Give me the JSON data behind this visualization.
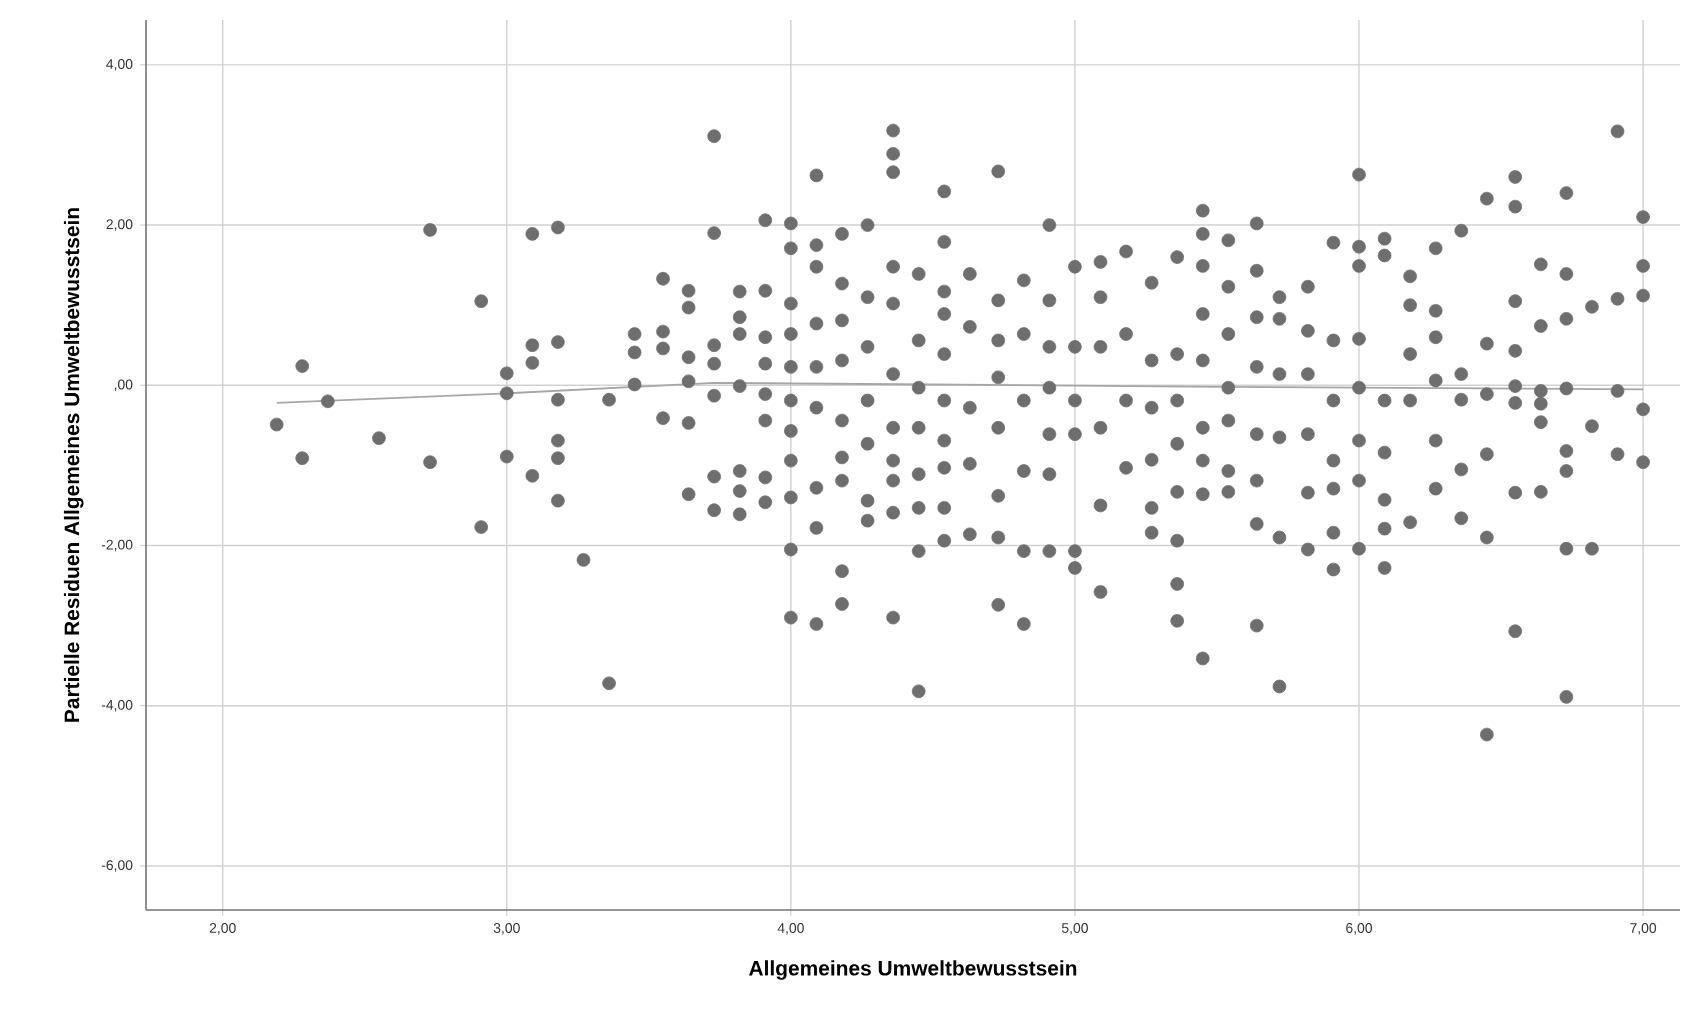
{
  "chart_data": {
    "type": "scatter",
    "xlabel": "Allgemeines Umweltbewusstsein",
    "ylabel": "Partielle Residuen Allgemeines Umweltbewusstsein",
    "xlim": [
      1.73,
      7.13
    ],
    "ylim": [
      -6.55,
      4.56
    ],
    "xticks": [
      {
        "value": 2,
        "label": "2,00"
      },
      {
        "value": 3,
        "label": "3,00"
      },
      {
        "value": 4,
        "label": "4,00"
      },
      {
        "value": 5,
        "label": "5,00"
      },
      {
        "value": 6,
        "label": "6,00"
      },
      {
        "value": 7,
        "label": "7,00"
      }
    ],
    "yticks": [
      {
        "value": -6,
        "label": "-6,00"
      },
      {
        "value": -4,
        "label": "-4,00"
      },
      {
        "value": -2,
        "label": "-2,00"
      },
      {
        "value": 0,
        "label": ",00"
      },
      {
        "value": 2,
        "label": "2,00"
      },
      {
        "value": 4,
        "label": "4,00"
      }
    ],
    "grid": true,
    "marker": "circle",
    "series": [
      {
        "color": "#6e6e6e",
        "x": [
          2.19,
          2.28,
          2.28,
          2.37,
          2.55,
          2.73,
          2.73,
          2.91,
          2.91,
          3.0,
          3.0,
          3.0,
          3.09,
          3.09,
          3.09,
          3.09,
          3.18,
          3.18,
          3.18,
          3.18,
          3.18,
          3.18,
          3.27,
          3.36,
          3.36,
          3.45,
          3.45,
          3.45,
          3.55,
          3.55,
          3.55,
          3.55,
          3.64,
          3.64,
          3.64,
          3.64,
          3.64,
          3.64,
          3.73,
          3.73,
          3.73,
          3.73,
          3.73,
          3.73,
          3.73,
          3.82,
          3.82,
          3.82,
          3.82,
          3.82,
          3.82,
          3.82,
          3.91,
          3.91,
          3.91,
          3.91,
          3.91,
          3.91,
          3.91,
          3.91,
          4.0,
          4.0,
          4.0,
          4.0,
          4.0,
          4.0,
          4.0,
          4.0,
          4.0,
          4.0,
          4.0,
          4.09,
          4.09,
          4.09,
          4.09,
          4.09,
          4.09,
          4.09,
          4.09,
          4.09,
          4.18,
          4.18,
          4.18,
          4.18,
          4.18,
          4.18,
          4.18,
          4.18,
          4.18,
          4.27,
          4.27,
          4.27,
          4.27,
          4.27,
          4.27,
          4.27,
          4.36,
          4.36,
          4.36,
          4.36,
          4.36,
          4.36,
          4.36,
          4.36,
          4.36,
          4.36,
          4.36,
          4.45,
          4.45,
          4.45,
          4.45,
          4.45,
          4.45,
          4.45,
          4.45,
          4.54,
          4.54,
          4.54,
          4.54,
          4.54,
          4.54,
          4.54,
          4.54,
          4.54,
          4.54,
          4.63,
          4.63,
          4.63,
          4.63,
          4.63,
          4.73,
          4.73,
          4.73,
          4.73,
          4.73,
          4.73,
          4.73,
          4.73,
          4.82,
          4.82,
          4.82,
          4.82,
          4.82,
          4.82,
          4.91,
          4.91,
          4.91,
          4.91,
          4.91,
          4.91,
          4.91,
          5.0,
          5.0,
          5.0,
          5.0,
          5.0,
          5.0,
          5.09,
          5.09,
          5.09,
          5.09,
          5.09,
          5.09,
          5.18,
          5.18,
          5.18,
          5.18,
          5.27,
          5.27,
          5.27,
          5.27,
          5.27,
          5.27,
          5.36,
          5.36,
          5.36,
          5.36,
          5.36,
          5.36,
          5.36,
          5.36,
          5.45,
          5.45,
          5.45,
          5.45,
          5.45,
          5.45,
          5.45,
          5.45,
          5.45,
          5.54,
          5.54,
          5.54,
          5.54,
          5.54,
          5.54,
          5.54,
          5.64,
          5.64,
          5.64,
          5.64,
          5.64,
          5.64,
          5.64,
          5.64,
          5.72,
          5.72,
          5.72,
          5.72,
          5.72,
          5.72,
          5.82,
          5.82,
          5.82,
          5.82,
          5.82,
          5.82,
          5.91,
          5.91,
          5.91,
          5.91,
          5.91,
          5.91,
          5.91,
          6.0,
          6.0,
          6.0,
          6.0,
          6.0,
          6.0,
          6.0,
          6.0,
          6.09,
          6.09,
          6.09,
          6.09,
          6.09,
          6.09,
          6.09,
          6.18,
          6.18,
          6.18,
          6.18,
          6.18,
          6.27,
          6.27,
          6.27,
          6.27,
          6.27,
          6.27,
          6.36,
          6.36,
          6.36,
          6.36,
          6.36,
          6.45,
          6.45,
          6.45,
          6.45,
          6.45,
          6.45,
          6.55,
          6.55,
          6.55,
          6.55,
          6.55,
          6.55,
          6.55,
          6.55,
          6.64,
          6.64,
          6.64,
          6.64,
          6.64,
          6.64,
          6.73,
          6.73,
          6.73,
          6.73,
          6.73,
          6.73,
          6.73,
          6.73,
          6.82,
          6.82,
          6.82,
          6.91,
          6.91,
          6.91,
          6.91,
          7.0,
          7.0,
          7.0,
          7.0,
          7.0
        ],
        "values": [
          -0.49,
          0.24,
          -0.91,
          -0.2,
          -0.66,
          1.94,
          -0.96,
          1.05,
          -1.77,
          0.15,
          -0.1,
          -0.89,
          1.89,
          0.5,
          0.28,
          -1.13,
          1.97,
          0.54,
          -0.18,
          -0.69,
          -0.91,
          -1.44,
          -2.18,
          -0.18,
          -3.72,
          0.64,
          0.41,
          0.01,
          1.33,
          0.67,
          0.46,
          -0.41,
          1.18,
          0.97,
          0.35,
          0.05,
          -0.47,
          -1.36,
          3.11,
          1.9,
          0.5,
          0.27,
          -0.13,
          -1.14,
          -1.56,
          1.17,
          0.85,
          0.64,
          -0.01,
          -1.07,
          -1.32,
          -1.61,
          2.06,
          1.18,
          0.6,
          0.27,
          -0.11,
          -0.44,
          -1.15,
          -1.46,
          2.02,
          1.71,
          1.02,
          0.64,
          0.23,
          -0.19,
          -0.57,
          -0.94,
          -1.4,
          -2.05,
          -2.9,
          2.62,
          1.75,
          1.48,
          0.77,
          0.23,
          -0.28,
          -1.28,
          -1.78,
          -2.98,
          1.89,
          1.27,
          0.81,
          0.31,
          -0.44,
          -0.9,
          -1.19,
          -2.32,
          -2.73,
          2.0,
          1.1,
          0.48,
          -0.19,
          -0.73,
          -1.44,
          -1.69,
          3.18,
          2.89,
          2.66,
          1.48,
          1.02,
          0.14,
          -0.53,
          -0.94,
          -1.19,
          -1.59,
          -2.9,
          1.39,
          0.56,
          -0.03,
          -0.53,
          -1.11,
          -1.53,
          -2.07,
          -3.82,
          2.42,
          1.79,
          1.17,
          0.89,
          0.39,
          -0.19,
          -0.69,
          -1.03,
          -1.53,
          -1.94,
          1.39,
          0.73,
          -0.28,
          -0.98,
          -1.86,
          2.67,
          1.06,
          0.56,
          0.1,
          -0.53,
          -1.38,
          -1.9,
          -2.74,
          1.31,
          0.64,
          -0.19,
          -1.07,
          -2.07,
          -2.98,
          2.0,
          1.06,
          0.48,
          -0.03,
          -0.61,
          -1.11,
          -2.07,
          1.48,
          0.48,
          -0.19,
          -0.61,
          -2.07,
          -2.28,
          1.54,
          1.1,
          0.48,
          -0.53,
          -1.5,
          -2.58,
          1.67,
          0.64,
          -0.19,
          -1.03,
          1.28,
          0.31,
          -0.28,
          -0.93,
          -1.53,
          -1.84,
          1.6,
          0.39,
          -0.19,
          -0.73,
          -1.33,
          -1.94,
          -2.48,
          -2.94,
          2.18,
          1.89,
          1.49,
          0.89,
          0.31,
          -0.53,
          -0.94,
          -1.36,
          -3.41,
          1.81,
          1.23,
          0.64,
          -0.03,
          -0.44,
          -1.07,
          -1.33,
          2.02,
          1.43,
          0.85,
          0.23,
          -0.61,
          -1.19,
          -1.73,
          -3.0,
          1.1,
          0.83,
          0.14,
          -0.65,
          -1.9,
          -3.76,
          1.23,
          0.68,
          0.14,
          -0.61,
          -1.34,
          -2.05,
          1.78,
          0.56,
          -0.19,
          -0.94,
          -1.29,
          -1.84,
          -2.3,
          2.63,
          1.73,
          1.49,
          0.58,
          -0.03,
          -0.69,
          -1.19,
          -2.04,
          1.83,
          1.62,
          -0.19,
          -0.84,
          -1.43,
          -1.79,
          -2.28,
          1.36,
          1.0,
          0.39,
          -0.19,
          -1.71,
          1.71,
          0.93,
          0.6,
          0.06,
          -0.69,
          -1.29,
          1.93,
          0.14,
          -0.18,
          -1.05,
          -1.66,
          2.33,
          0.52,
          -0.11,
          -0.86,
          -1.9,
          -4.36,
          2.6,
          2.23,
          1.05,
          0.43,
          -0.01,
          -0.22,
          -1.34,
          -3.07,
          1.51,
          0.74,
          -0.07,
          -0.23,
          -0.46,
          -1.33,
          2.4,
          1.39,
          0.83,
          -0.04,
          -0.82,
          -1.07,
          -2.04,
          -3.89,
          0.98,
          -0.51,
          -2.04,
          3.17,
          1.08,
          -0.07,
          -0.86,
          2.1,
          1.49,
          1.12,
          -0.3,
          -0.96
        ]
      },
      {
        "type": "line",
        "color": "#a6a6a6",
        "marker": "none",
        "x": [
          2.19,
          3.0,
          3.73,
          4.5,
          5.5,
          7.0
        ],
        "values": [
          -0.22,
          -0.1,
          0.03,
          0.01,
          -0.02,
          -0.05
        ]
      }
    ]
  }
}
